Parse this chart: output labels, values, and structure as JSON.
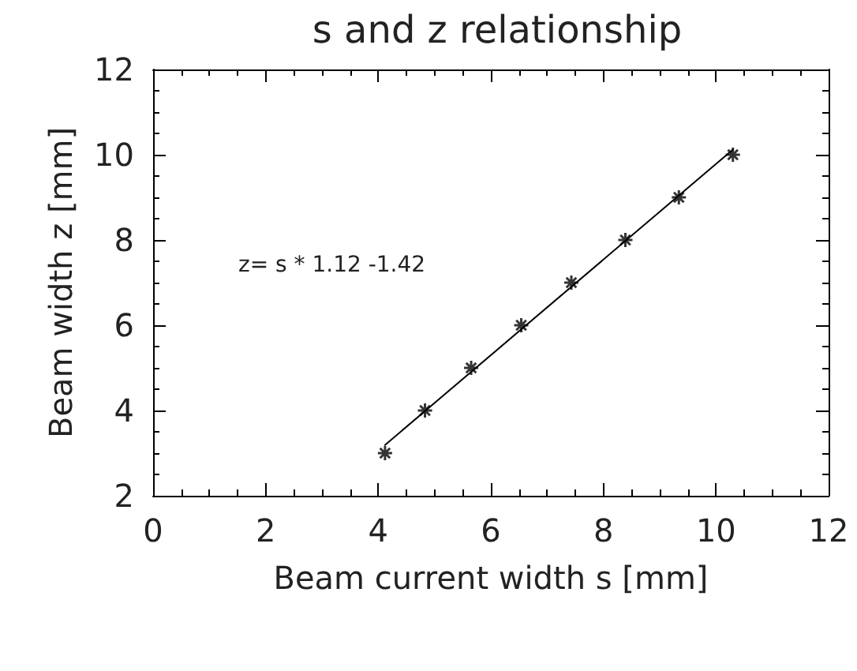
{
  "chart_data": {
    "type": "scatter",
    "title": "s and z relationship",
    "xlabel": "Beam current width s [mm]",
    "ylabel": "Beam width z [mm]",
    "annotations": [
      "z= s * 1.12 -1.42"
    ],
    "xlim": [
      0,
      12
    ],
    "xticks": [
      0,
      2,
      4,
      6,
      8,
      10,
      12
    ],
    "ylim": [
      2,
      12
    ],
    "yticks": [
      2,
      4,
      6,
      8,
      10,
      12
    ],
    "grid": false,
    "series": [
      {
        "color": "#000000",
        "marker": "cross",
        "x": [
          4.12,
          4.83,
          5.65,
          6.54,
          7.43,
          8.39,
          9.34,
          10.3
        ],
        "values": [
          3,
          4,
          5,
          6,
          7,
          8,
          9,
          10
        ]
      },
      {
        "type": "line",
        "color": "#000000",
        "marker": "none",
        "line_style": "solid",
        "x": [
          4.12,
          10.3
        ],
        "values": [
          3.19,
          10.12
        ]
      }
    ]
  }
}
